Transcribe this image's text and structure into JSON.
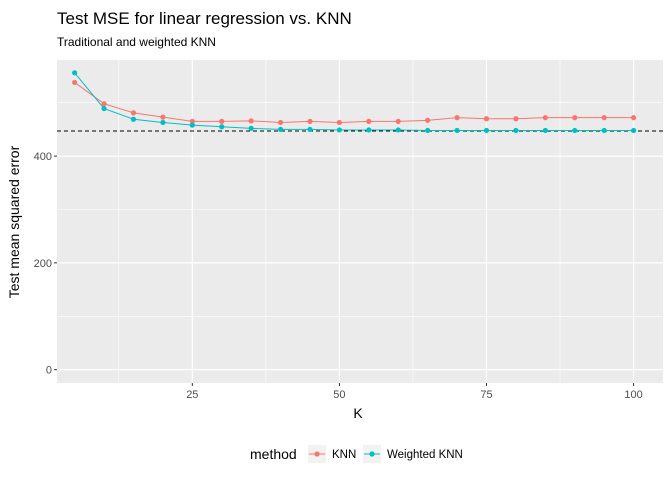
{
  "chart_data": {
    "type": "line",
    "title": "Test MSE for linear regression vs. KNN",
    "subtitle": "Traditional and weighted KNN",
    "xlabel": "K",
    "ylabel": "Test mean squared error",
    "xlim": [
      2,
      105
    ],
    "ylim": [
      -25,
      580
    ],
    "xticks": [
      25,
      50,
      75,
      100
    ],
    "yticks": [
      0,
      200,
      400
    ],
    "x": [
      5,
      10,
      15,
      20,
      25,
      30,
      35,
      40,
      45,
      50,
      55,
      60,
      65,
      70,
      75,
      80,
      85,
      90,
      95,
      100
    ],
    "series": [
      {
        "name": "KNN",
        "color": "#F8766D",
        "values": [
          538,
          498,
          481,
          473,
          465,
          465,
          466,
          463,
          465,
          463,
          465,
          465,
          467,
          472,
          470,
          470,
          472,
          472,
          472,
          472
        ]
      },
      {
        "name": "Weighted KNN",
        "color": "#00BFC4",
        "values": [
          556,
          489,
          469,
          463,
          458,
          455,
          452,
          450,
          450,
          449,
          449,
          449,
          448,
          448,
          448,
          448,
          448,
          448,
          448,
          448
        ]
      }
    ],
    "reference_line": {
      "y": 447,
      "style": "dashed",
      "color": "#000000"
    },
    "legend": {
      "title": "method",
      "position": "bottom"
    },
    "grid": true,
    "panel_background": "#EBEBEB",
    "gridline_color": "#FFFFFF"
  }
}
